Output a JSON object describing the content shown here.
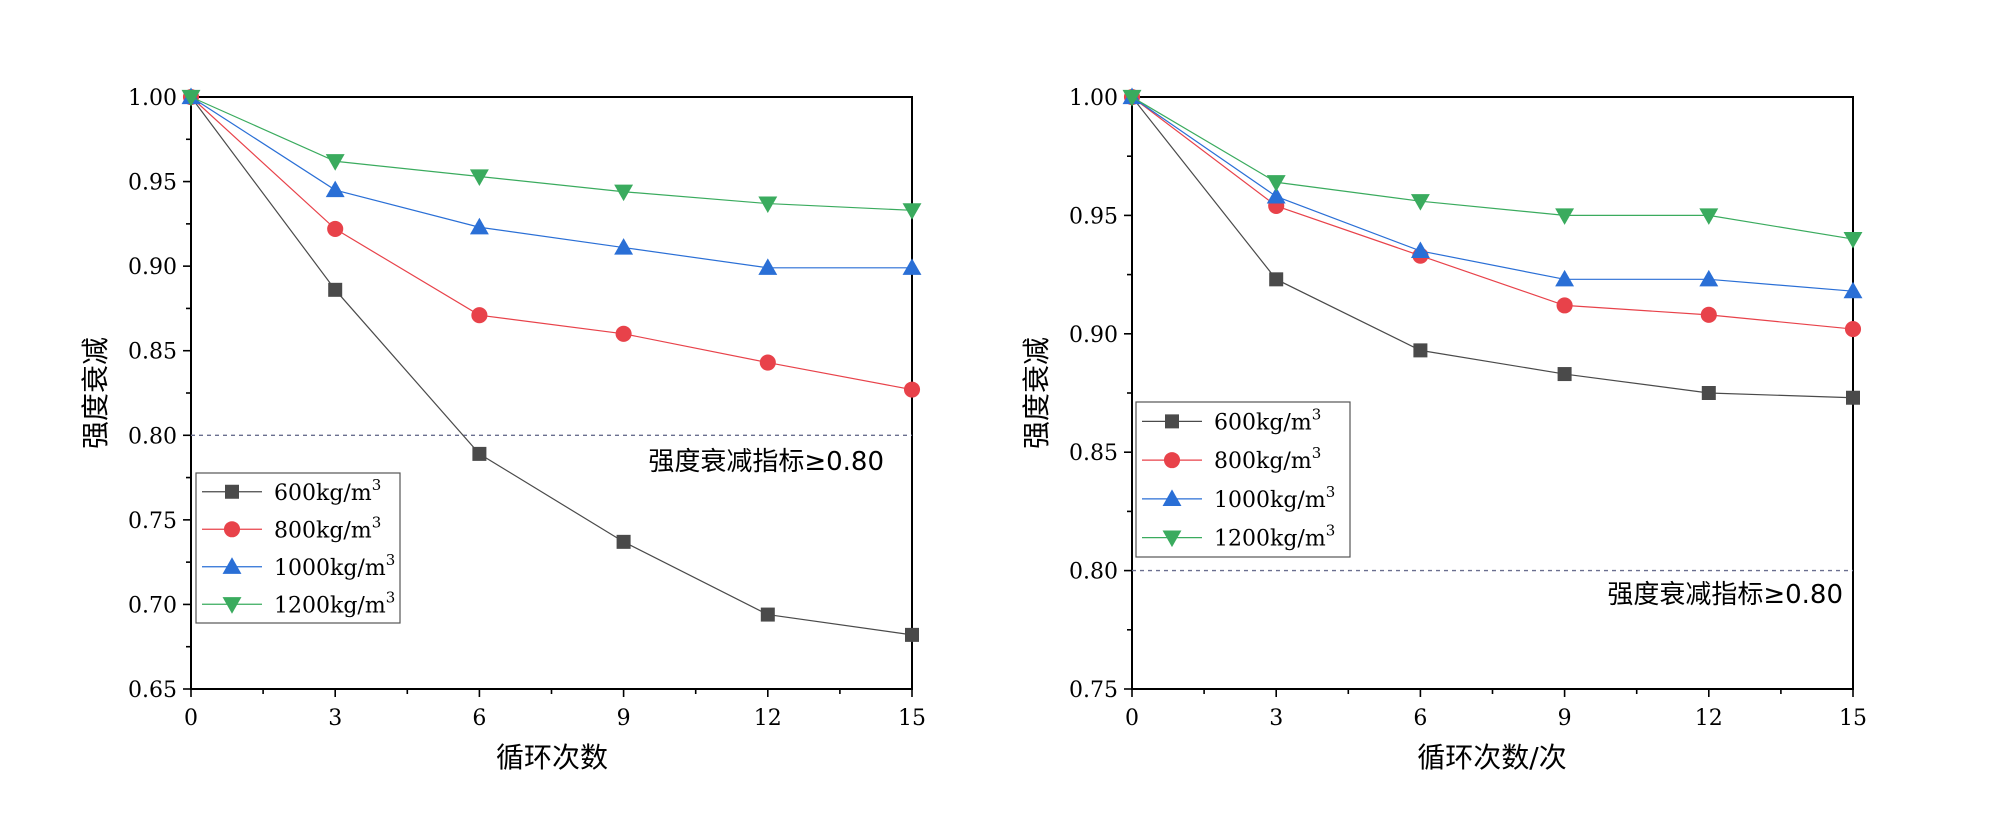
{
  "colors": {
    "600kg/m3": "#4a4a4a",
    "800kg/m3": "#e8424a",
    "1000kg/m3": "#2a6fd6",
    "1200kg/m3": "#3aab5e"
  },
  "chart_data": [
    {
      "type": "line",
      "xlabel": "循环次数",
      "ylabel": "强度衰减",
      "x": [
        0,
        3,
        6,
        9,
        12,
        15
      ],
      "xlim": [
        0,
        15
      ],
      "xticks": [
        "0",
        "3",
        "6",
        "9",
        "12",
        "15"
      ],
      "ylim": [
        0.65,
        1.0
      ],
      "yticks": [
        "0.65",
        "0.70",
        "0.75",
        "0.80",
        "0.85",
        "0.90",
        "0.95",
        "1.00"
      ],
      "reference_line": {
        "y": 0.8,
        "label": "强度衰减指标≥0.80"
      },
      "legend_position": "bottom-left",
      "series": [
        {
          "name": "600kg/m",
          "sup": "3",
          "color_key": "600kg/m3",
          "marker": "square",
          "values": [
            1.0,
            0.886,
            0.789,
            0.737,
            0.694,
            0.682
          ]
        },
        {
          "name": "800kg/m",
          "sup": "3",
          "color_key": "800kg/m3",
          "marker": "circle",
          "values": [
            1.0,
            0.922,
            0.871,
            0.86,
            0.843,
            0.827
          ]
        },
        {
          "name": "1000kg/m",
          "sup": "3",
          "color_key": "1000kg/m3",
          "marker": "triangle-up",
          "values": [
            1.0,
            0.945,
            0.923,
            0.911,
            0.899,
            0.899
          ]
        },
        {
          "name": "1200kg/m",
          "sup": "3",
          "color_key": "1200kg/m3",
          "marker": "triangle-down",
          "values": [
            1.0,
            0.962,
            0.953,
            0.944,
            0.937,
            0.933
          ]
        }
      ]
    },
    {
      "type": "line",
      "xlabel": "循环次数/次",
      "ylabel": "强度衰减",
      "x": [
        0,
        3,
        6,
        9,
        12,
        15
      ],
      "xlim": [
        0,
        15
      ],
      "xticks": [
        "0",
        "3",
        "6",
        "9",
        "12",
        "15"
      ],
      "ylim": [
        0.75,
        1.0
      ],
      "yticks": [
        "0.75",
        "0.80",
        "0.85",
        "0.90",
        "0.95",
        "1.00"
      ],
      "reference_line": {
        "y": 0.8,
        "label": "强度衰减指标≥0.80"
      },
      "legend_position": "middle-left",
      "series": [
        {
          "name": "600kg/m",
          "sup": "3",
          "color_key": "600kg/m3",
          "marker": "square",
          "values": [
            1.0,
            0.923,
            0.893,
            0.883,
            0.875,
            0.873
          ]
        },
        {
          "name": "800kg/m",
          "sup": "3",
          "color_key": "800kg/m3",
          "marker": "circle",
          "values": [
            1.0,
            0.954,
            0.933,
            0.912,
            0.908,
            0.902
          ]
        },
        {
          "name": "1000kg/m",
          "sup": "3",
          "color_key": "1000kg/m3",
          "marker": "triangle-up",
          "values": [
            1.0,
            0.958,
            0.935,
            0.923,
            0.923,
            0.918
          ]
        },
        {
          "name": "1200kg/m",
          "sup": "3",
          "color_key": "1200kg/m3",
          "marker": "triangle-down",
          "values": [
            1.0,
            0.964,
            0.956,
            0.95,
            0.95,
            0.94
          ]
        }
      ]
    }
  ]
}
